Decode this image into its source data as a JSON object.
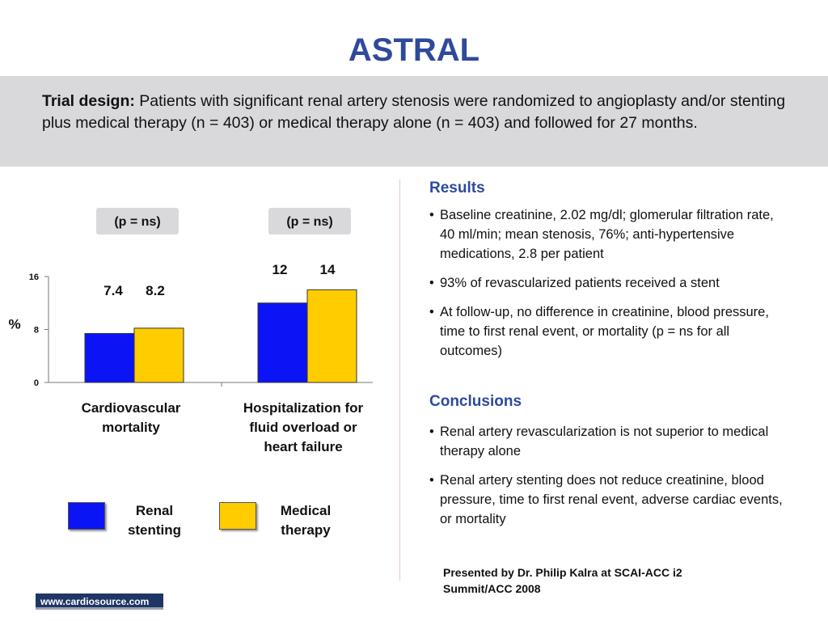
{
  "title": "ASTRAL",
  "trial_design": {
    "label": "Trial design:",
    "text": "Patients with significant renal artery stenosis were randomized to angioplasty and/or stenting plus medical therapy (n = 403) or medical therapy alone (n = 403) and followed for 27 months."
  },
  "colors": {
    "renal_stenting": "#0a14f5",
    "medical_therapy": "#ffcc00",
    "heading": "#2f4a9c"
  },
  "chart_data": {
    "type": "bar",
    "ylabel": "%",
    "ylim": [
      0,
      16
    ],
    "yticks": [
      0,
      8,
      16
    ],
    "categories": [
      "Cardiovascular mortality",
      "Hospitalization for fluid overload or heart failure"
    ],
    "category_lines": [
      [
        "Cardiovascular",
        "mortality"
      ],
      [
        "Hospitalization for",
        "fluid overload or",
        "heart failure"
      ]
    ],
    "series": [
      {
        "name": "Renal stenting",
        "values": [
          7.4,
          12
        ],
        "labels": [
          "7.4",
          "12"
        ]
      },
      {
        "name": "Medical therapy",
        "values": [
          8.2,
          14
        ],
        "labels": [
          "8.2",
          "14"
        ]
      }
    ],
    "p_values": [
      "(p = ns)",
      "(p = ns)"
    ],
    "legend": [
      {
        "lines": [
          "Renal",
          "stenting"
        ]
      },
      {
        "lines": [
          "Medical",
          "therapy"
        ]
      }
    ]
  },
  "results": {
    "heading": "Results",
    "items": [
      "Baseline creatinine, 2.02 mg/dl; glomerular filtration rate, 40 ml/min; mean stenosis, 76%; anti-hypertensive medications, 2.8 per patient",
      "93% of revascularized patients received a stent",
      "At follow-up, no difference in creatinine, blood pressure, time to first renal event, or mortality (p = ns for all outcomes)"
    ]
  },
  "conclusions": {
    "heading": "Conclusions",
    "items": [
      "Renal artery revascularization is not superior to medical therapy alone",
      "Renal artery stenting does not reduce creatinine, blood pressure, time to first renal event, adverse cardiac events, or mortality"
    ]
  },
  "presented_by": "Presented by Dr. Philip Kalra at SCAI-ACC i2 Summit/ACC 2008",
  "footer": {
    "url": "www.cardiosource.com"
  }
}
